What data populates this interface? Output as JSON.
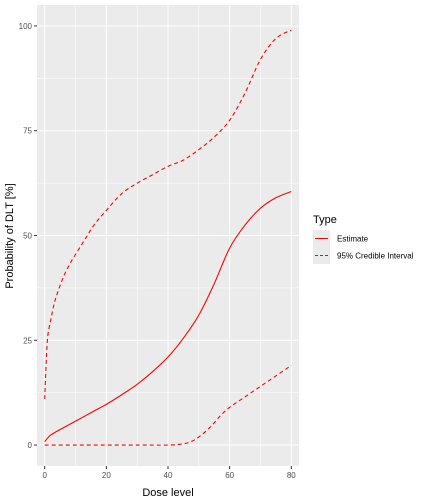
{
  "chart_data": {
    "type": "line",
    "xlabel": "Dose level",
    "ylabel": "Probability of DLT [%]",
    "xlim": [
      -2.5,
      82.5
    ],
    "ylim": [
      -5,
      105
    ],
    "x_ticks": [
      0,
      20,
      40,
      60,
      80
    ],
    "y_ticks": [
      0,
      25,
      50,
      75,
      100
    ],
    "grid": true,
    "legend": {
      "title": "Type",
      "placement": "right",
      "entries": [
        {
          "label": "Estimate",
          "line_style": "solid"
        },
        {
          "label": "95% Credible Interval",
          "line_style": "dashed"
        }
      ]
    },
    "colors": {
      "series": "#ff0000",
      "panel": "#ebebeb",
      "grid": "#ffffff"
    },
    "series": [
      {
        "key": "estimate",
        "style": "solid",
        "x": [
          0,
          1,
          2,
          4,
          6,
          8,
          10,
          12,
          15,
          18,
          20,
          25,
          30,
          35,
          40,
          45,
          50,
          55,
          60,
          65,
          70,
          75,
          80
        ],
        "y": [
          0.8,
          1.7,
          2.4,
          3.3,
          4.1,
          4.9,
          5.7,
          6.5,
          7.7,
          8.9,
          9.7,
          12.0,
          14.5,
          17.5,
          21.0,
          25.5,
          31.0,
          38.5,
          47.0,
          52.5,
          56.5,
          59.0,
          60.5
        ]
      },
      {
        "key": "ci_upper",
        "style": "dashed",
        "x": [
          0,
          0.5,
          1,
          2,
          3,
          4,
          6,
          8,
          10,
          13,
          16,
          20,
          25,
          30,
          35,
          40,
          45,
          50,
          55,
          60,
          65,
          70,
          75,
          80
        ],
        "y": [
          11,
          20,
          26,
          30,
          33.5,
          36,
          40,
          43,
          45.5,
          49,
          52.5,
          56,
          60,
          62.5,
          64.5,
          66.5,
          68,
          70.5,
          73.5,
          77.5,
          84,
          92,
          97,
          99
        ]
      },
      {
        "key": "ci_lower",
        "style": "dashed",
        "x": [
          0,
          10,
          20,
          30,
          40,
          45,
          48,
          51,
          54,
          57,
          60,
          65,
          70,
          75,
          80
        ],
        "y": [
          0,
          0,
          0,
          0,
          0,
          0.3,
          1,
          2.5,
          4.5,
          7,
          9,
          11.5,
          14,
          16.5,
          19
        ]
      }
    ]
  }
}
